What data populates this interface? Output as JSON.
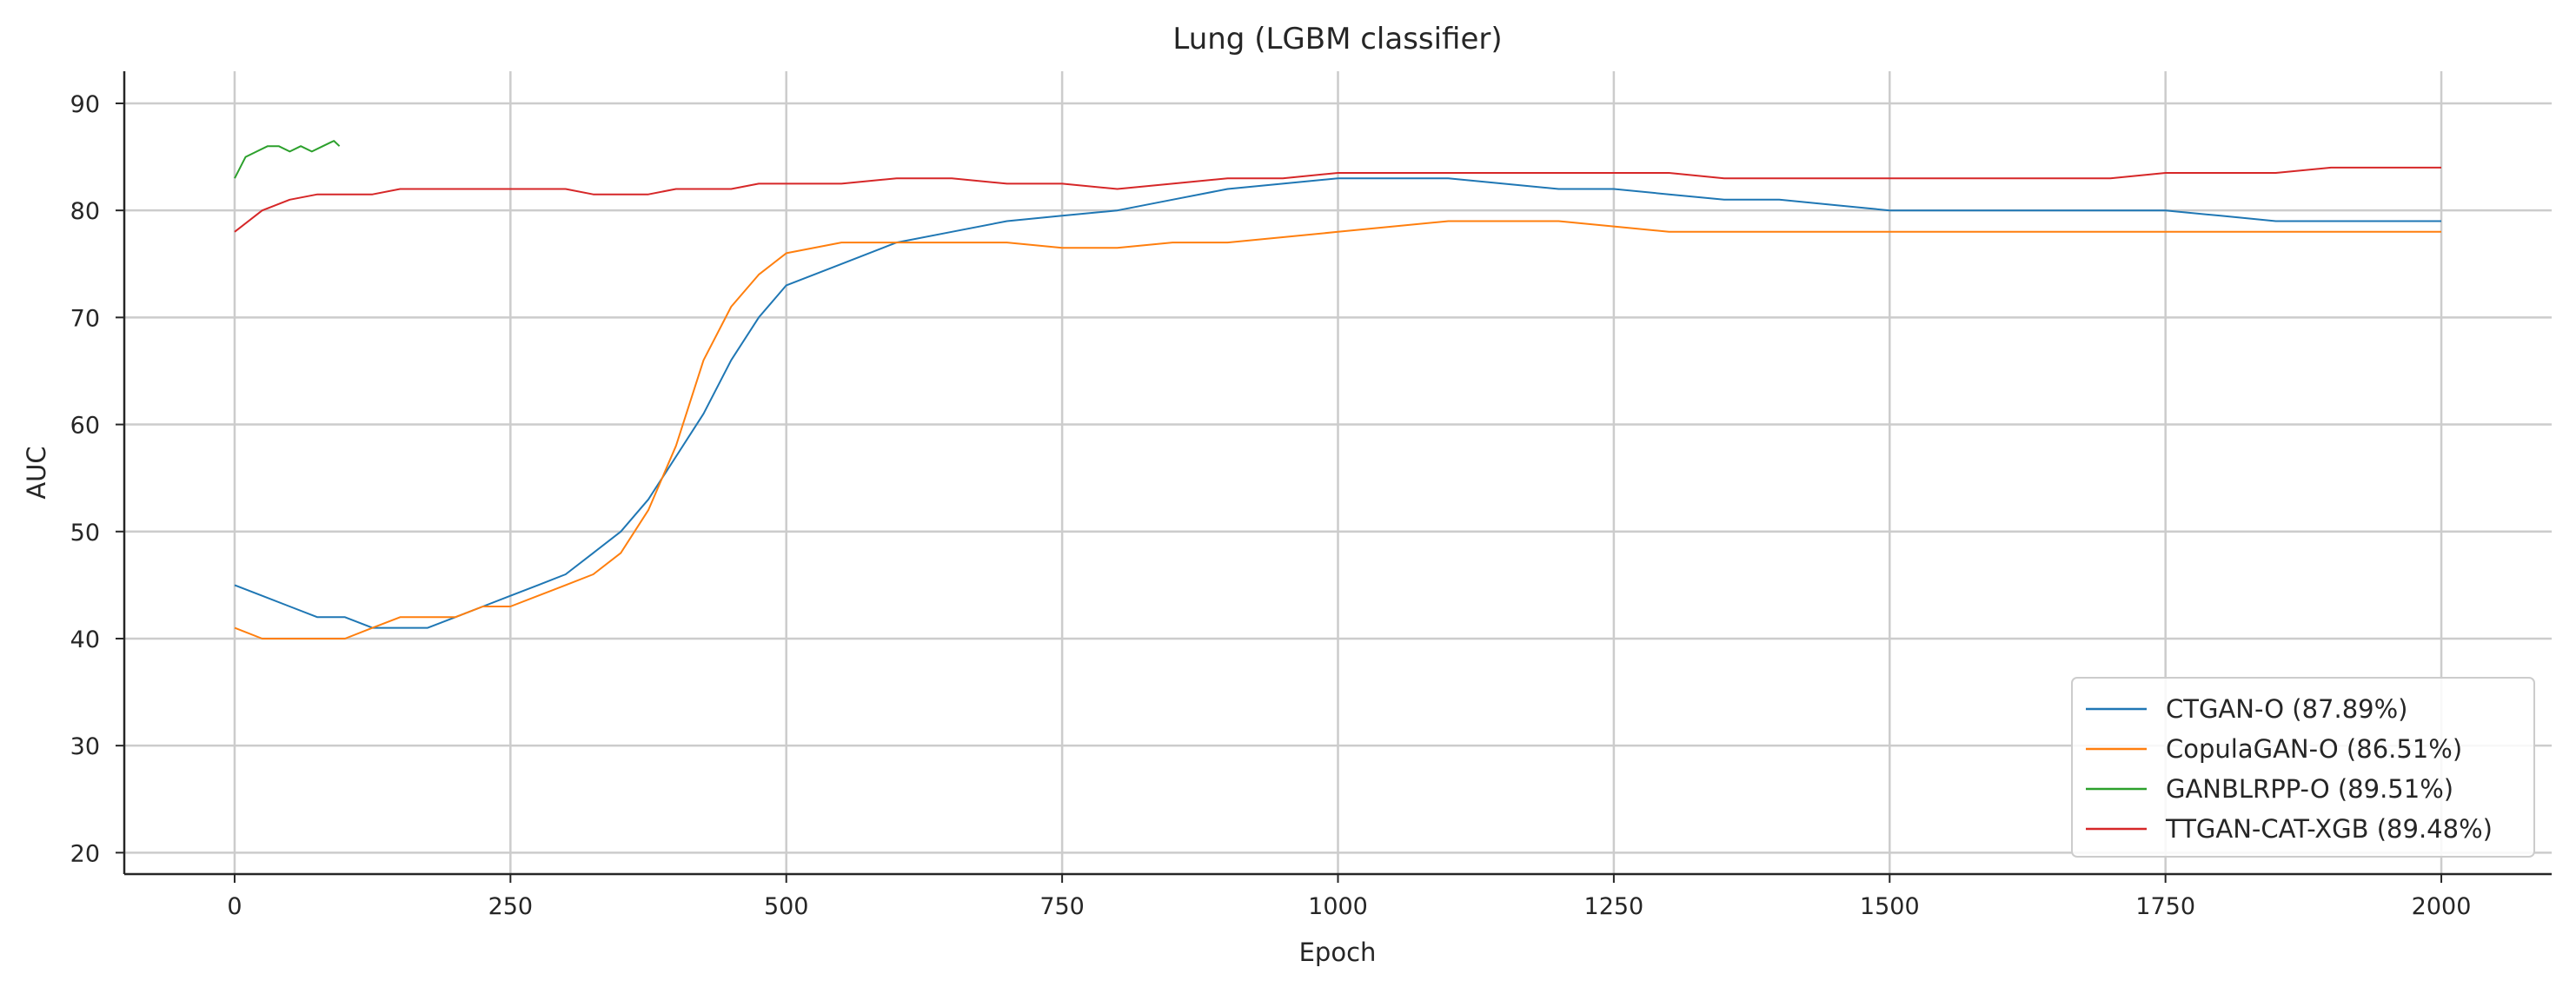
{
  "chart_data": {
    "type": "line",
    "title": "Lung (LGBM classifier)",
    "xlabel": "Epoch",
    "ylabel": "AUC",
    "xlim": [
      -100,
      2100
    ],
    "ylim": [
      18,
      93
    ],
    "xticks": [
      0,
      250,
      500,
      750,
      1000,
      1250,
      1500,
      1750,
      2000
    ],
    "yticks": [
      20,
      30,
      40,
      50,
      60,
      70,
      80,
      90
    ],
    "xtick_labels": [
      "0",
      "250",
      "500",
      "750",
      "1000",
      "1250",
      "1500",
      "1750",
      "2000"
    ],
    "ytick_labels": [
      "20",
      "30",
      "40",
      "50",
      "60",
      "70",
      "80",
      "90"
    ],
    "grid": true,
    "legend_position": "bottom-right",
    "series": [
      {
        "name": "CTGAN-O (87.89%)",
        "color": "#1f77b4",
        "x": [
          0,
          25,
          50,
          75,
          100,
          125,
          150,
          175,
          200,
          225,
          250,
          275,
          300,
          325,
          350,
          375,
          400,
          425,
          450,
          475,
          500,
          550,
          600,
          650,
          700,
          750,
          800,
          850,
          900,
          950,
          1000,
          1050,
          1100,
          1150,
          1200,
          1250,
          1300,
          1350,
          1400,
          1450,
          1500,
          1550,
          1600,
          1650,
          1700,
          1750,
          1800,
          1850,
          1900,
          1950,
          2000
        ],
        "values": [
          45,
          44,
          43,
          42,
          42,
          41,
          41,
          41,
          42,
          43,
          44,
          45,
          46,
          48,
          50,
          53,
          57,
          61,
          66,
          70,
          73,
          75,
          77,
          78,
          79,
          79.5,
          80,
          81,
          82,
          82.5,
          83,
          83,
          83,
          82.5,
          82,
          82,
          81.5,
          81,
          81,
          80.5,
          80,
          80,
          80,
          80,
          80,
          80,
          79.5,
          79,
          79,
          79,
          79
        ]
      },
      {
        "name": "CopulaGAN-O (86.51%)",
        "color": "#ff7f0e",
        "x": [
          0,
          25,
          50,
          75,
          100,
          125,
          150,
          175,
          200,
          225,
          250,
          275,
          300,
          325,
          350,
          375,
          400,
          425,
          450,
          475,
          500,
          550,
          600,
          650,
          700,
          750,
          800,
          850,
          900,
          950,
          1000,
          1050,
          1100,
          1150,
          1200,
          1250,
          1300,
          1350,
          1400,
          1450,
          1500,
          1550,
          1600,
          1650,
          1700,
          1750,
          1800,
          1850,
          1900,
          1950,
          2000
        ],
        "values": [
          41,
          40,
          40,
          40,
          40,
          41,
          42,
          42,
          42,
          43,
          43,
          44,
          45,
          46,
          48,
          52,
          58,
          66,
          71,
          74,
          76,
          77,
          77,
          77,
          77,
          76.5,
          76.5,
          77,
          77,
          77.5,
          78,
          78.5,
          79,
          79,
          79,
          78.5,
          78,
          78,
          78,
          78,
          78,
          78,
          78,
          78,
          78,
          78,
          78,
          78,
          78,
          78,
          78
        ]
      },
      {
        "name": "GANBLRPP-O (89.51%)",
        "color": "#2ca02c",
        "x": [
          0,
          10,
          20,
          30,
          40,
          50,
          60,
          70,
          80,
          90,
          95
        ],
        "values": [
          83,
          85,
          85.5,
          86,
          86,
          85.5,
          86,
          85.5,
          86,
          86.5,
          86
        ]
      },
      {
        "name": "TTGAN-CAT-XGB (89.48%)",
        "color": "#d62728",
        "x": [
          0,
          25,
          50,
          75,
          100,
          125,
          150,
          175,
          200,
          225,
          250,
          275,
          300,
          325,
          350,
          375,
          400,
          425,
          450,
          475,
          500,
          550,
          600,
          650,
          700,
          750,
          800,
          850,
          900,
          950,
          1000,
          1050,
          1100,
          1150,
          1200,
          1250,
          1300,
          1350,
          1400,
          1450,
          1500,
          1550,
          1600,
          1650,
          1700,
          1750,
          1800,
          1850,
          1900,
          1950,
          2000
        ],
        "values": [
          78,
          80,
          81,
          81.5,
          81.5,
          81.5,
          82,
          82,
          82,
          82,
          82,
          82,
          82,
          81.5,
          81.5,
          81.5,
          82,
          82,
          82,
          82.5,
          82.5,
          82.5,
          83,
          83,
          82.5,
          82.5,
          82,
          82.5,
          83,
          83,
          83.5,
          83.5,
          83.5,
          83.5,
          83.5,
          83.5,
          83.5,
          83,
          83,
          83,
          83,
          83,
          83,
          83,
          83,
          83.5,
          83.5,
          83.5,
          84,
          84,
          84
        ]
      }
    ]
  }
}
